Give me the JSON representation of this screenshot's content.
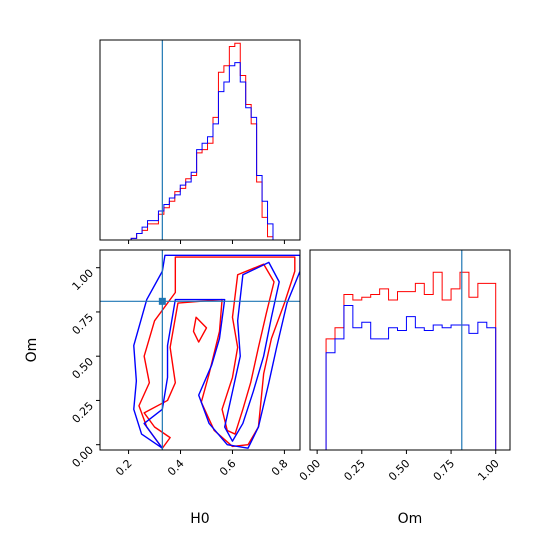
{
  "chart_data": {
    "type": "corner",
    "parameters": [
      "H0",
      "Om"
    ],
    "axis_labels": {
      "x_left": "H0",
      "x_right": "Om",
      "y_left": "Om"
    },
    "truth": {
      "H0": 0.33,
      "Om": 0.81
    },
    "colors": {
      "series_a": "#ff0000",
      "series_b": "#0000ff",
      "truth": "#1f77b4",
      "axes": "#000000"
    },
    "series": [
      {
        "color": "#ff0000",
        "hist_H0": {
          "edges": [
            0.21,
            0.231,
            0.252,
            0.273,
            0.294,
            0.315,
            0.336,
            0.357,
            0.378,
            0.399,
            0.42,
            0.441,
            0.462,
            0.483,
            0.504,
            0.525,
            0.546,
            0.567,
            0.588,
            0.609,
            0.63,
            0.651,
            0.672,
            0.693,
            0.714,
            0.735,
            0.756,
            0.777
          ],
          "counts": [
            0.5,
            2,
            3,
            5,
            5,
            8,
            10,
            12,
            15,
            16,
            19,
            20,
            27,
            28,
            30,
            38,
            52,
            54,
            60,
            61,
            51,
            42,
            36,
            18,
            7,
            1,
            0
          ]
        },
        "hist_Om": {
          "edges": [
            0.0,
            0.05,
            0.1,
            0.15,
            0.2,
            0.25,
            0.3,
            0.35,
            0.4,
            0.45,
            0.5,
            0.55,
            0.6,
            0.65,
            0.7,
            0.75,
            0.8,
            0.85,
            0.9,
            0.95,
            1.0,
            1.05
          ],
          "counts": [
            0,
            40,
            44,
            56,
            54,
            55,
            56,
            58,
            54,
            57,
            57,
            60,
            56,
            64,
            54,
            58,
            64,
            55,
            60,
            60,
            0
          ]
        },
        "contours": [
          [
            [
              0.38,
              1.06
            ],
            [
              0.6,
              1.06
            ],
            [
              0.84,
              1.06
            ],
            [
              0.84,
              0.98
            ],
            [
              0.8,
              0.8
            ],
            [
              0.75,
              0.6
            ],
            [
              0.72,
              0.4
            ],
            [
              0.7,
              0.1
            ],
            [
              0.66,
              0.0
            ],
            [
              0.6,
              -0.01
            ],
            [
              0.53,
              0.08
            ],
            [
              0.48,
              0.24
            ],
            [
              0.51,
              0.4
            ],
            [
              0.55,
              0.64
            ],
            [
              0.56,
              0.82
            ],
            [
              0.39,
              0.8
            ],
            [
              0.36,
              0.55
            ],
            [
              0.38,
              0.35
            ],
            [
              0.35,
              0.25
            ],
            [
              0.26,
              0.18
            ],
            [
              0.3,
              0.1
            ],
            [
              0.36,
              0.04
            ],
            [
              0.33,
              -0.02
            ],
            [
              0.27,
              0.1
            ],
            [
              0.24,
              0.22
            ],
            [
              0.28,
              0.35
            ],
            [
              0.26,
              0.5
            ],
            [
              0.3,
              0.7
            ],
            [
              0.38,
              0.86
            ],
            [
              0.38,
              1.06
            ]
          ],
          [
            [
              0.62,
              0.96
            ],
            [
              0.72,
              1.02
            ],
            [
              0.76,
              0.92
            ],
            [
              0.73,
              0.74
            ],
            [
              0.7,
              0.55
            ],
            [
              0.67,
              0.35
            ],
            [
              0.64,
              0.2
            ],
            [
              0.61,
              0.06
            ],
            [
              0.58,
              0.08
            ],
            [
              0.56,
              0.2
            ],
            [
              0.6,
              0.38
            ],
            [
              0.62,
              0.55
            ],
            [
              0.6,
              0.72
            ],
            [
              0.62,
              0.96
            ]
          ],
          [
            [
              0.46,
              0.72
            ],
            [
              0.5,
              0.66
            ],
            [
              0.47,
              0.58
            ],
            [
              0.45,
              0.64
            ],
            [
              0.46,
              0.72
            ]
          ]
        ]
      },
      {
        "color": "#0000ff",
        "hist_H0": {
          "edges": [
            0.21,
            0.231,
            0.252,
            0.273,
            0.294,
            0.315,
            0.336,
            0.357,
            0.378,
            0.399,
            0.42,
            0.441,
            0.462,
            0.483,
            0.504,
            0.525,
            0.546,
            0.567,
            0.588,
            0.609,
            0.63,
            0.651,
            0.672,
            0.693,
            0.714,
            0.735,
            0.756,
            0.777
          ],
          "counts": [
            0.5,
            2,
            4,
            6,
            6,
            9,
            11,
            13,
            14,
            17,
            18,
            21,
            28,
            30,
            32,
            36,
            46,
            49,
            54,
            55,
            49,
            41,
            38,
            20,
            12,
            5,
            0
          ]
        },
        "hist_Om": {
          "edges": [
            0.0,
            0.05,
            0.1,
            0.15,
            0.2,
            0.25,
            0.3,
            0.35,
            0.4,
            0.45,
            0.5,
            0.55,
            0.6,
            0.65,
            0.7,
            0.75,
            0.8,
            0.85,
            0.9,
            0.95,
            1.0,
            1.05
          ],
          "counts": [
            0,
            35,
            40,
            52,
            44,
            46,
            40,
            40,
            44,
            43,
            48,
            44,
            43,
            45,
            44,
            45,
            45,
            42,
            46,
            44,
            0
          ]
        },
        "contours": [
          [
            [
              0.34,
              1.07
            ],
            [
              0.6,
              1.07
            ],
            [
              0.86,
              1.07
            ],
            [
              0.86,
              0.98
            ],
            [
              0.81,
              0.8
            ],
            [
              0.77,
              0.55
            ],
            [
              0.74,
              0.35
            ],
            [
              0.7,
              0.1
            ],
            [
              0.66,
              -0.02
            ],
            [
              0.58,
              0.0
            ],
            [
              0.51,
              0.12
            ],
            [
              0.47,
              0.28
            ],
            [
              0.52,
              0.45
            ],
            [
              0.55,
              0.6
            ],
            [
              0.57,
              0.82
            ],
            [
              0.38,
              0.82
            ],
            [
              0.35,
              0.56
            ],
            [
              0.35,
              0.38
            ],
            [
              0.33,
              0.2
            ],
            [
              0.26,
              0.12
            ],
            [
              0.3,
              0.04
            ],
            [
              0.33,
              -0.02
            ],
            [
              0.25,
              0.06
            ],
            [
              0.22,
              0.2
            ],
            [
              0.23,
              0.36
            ],
            [
              0.22,
              0.56
            ],
            [
              0.27,
              0.82
            ],
            [
              0.33,
              0.98
            ],
            [
              0.34,
              1.07
            ]
          ],
          [
            [
              0.64,
              0.96
            ],
            [
              0.74,
              1.03
            ],
            [
              0.78,
              0.92
            ],
            [
              0.75,
              0.72
            ],
            [
              0.72,
              0.5
            ],
            [
              0.68,
              0.3
            ],
            [
              0.64,
              0.12
            ],
            [
              0.6,
              0.02
            ],
            [
              0.57,
              0.1
            ],
            [
              0.6,
              0.3
            ],
            [
              0.63,
              0.5
            ],
            [
              0.62,
              0.7
            ],
            [
              0.64,
              0.96
            ]
          ]
        ]
      }
    ],
    "axes": {
      "H0": {
        "range": [
          0.09,
          0.86
        ],
        "ticks": [
          0.2,
          0.4,
          0.6,
          0.8
        ],
        "tick_labels": [
          "0.2",
          "0.4",
          "0.6",
          "0.8"
        ]
      },
      "Om_y": {
        "range": [
          -0.03,
          1.1
        ],
        "ticks": [
          0.0,
          0.25,
          0.5,
          0.75,
          1.0
        ],
        "tick_labels": [
          "0.00",
          "0.25",
          "0.50",
          "0.75",
          "1.00"
        ]
      },
      "Om_x": {
        "range": [
          -0.04,
          1.08
        ],
        "ticks": [
          0.0,
          0.25,
          0.5,
          0.75,
          1.0
        ],
        "tick_labels": [
          "0.00",
          "0.25",
          "0.50",
          "0.75",
          "1.00"
        ]
      },
      "hist_H0_y": {
        "range": [
          0,
          62
        ]
      },
      "hist_Om_y": {
        "range": [
          0,
          72
        ]
      }
    },
    "grid": false,
    "legend": "none"
  }
}
